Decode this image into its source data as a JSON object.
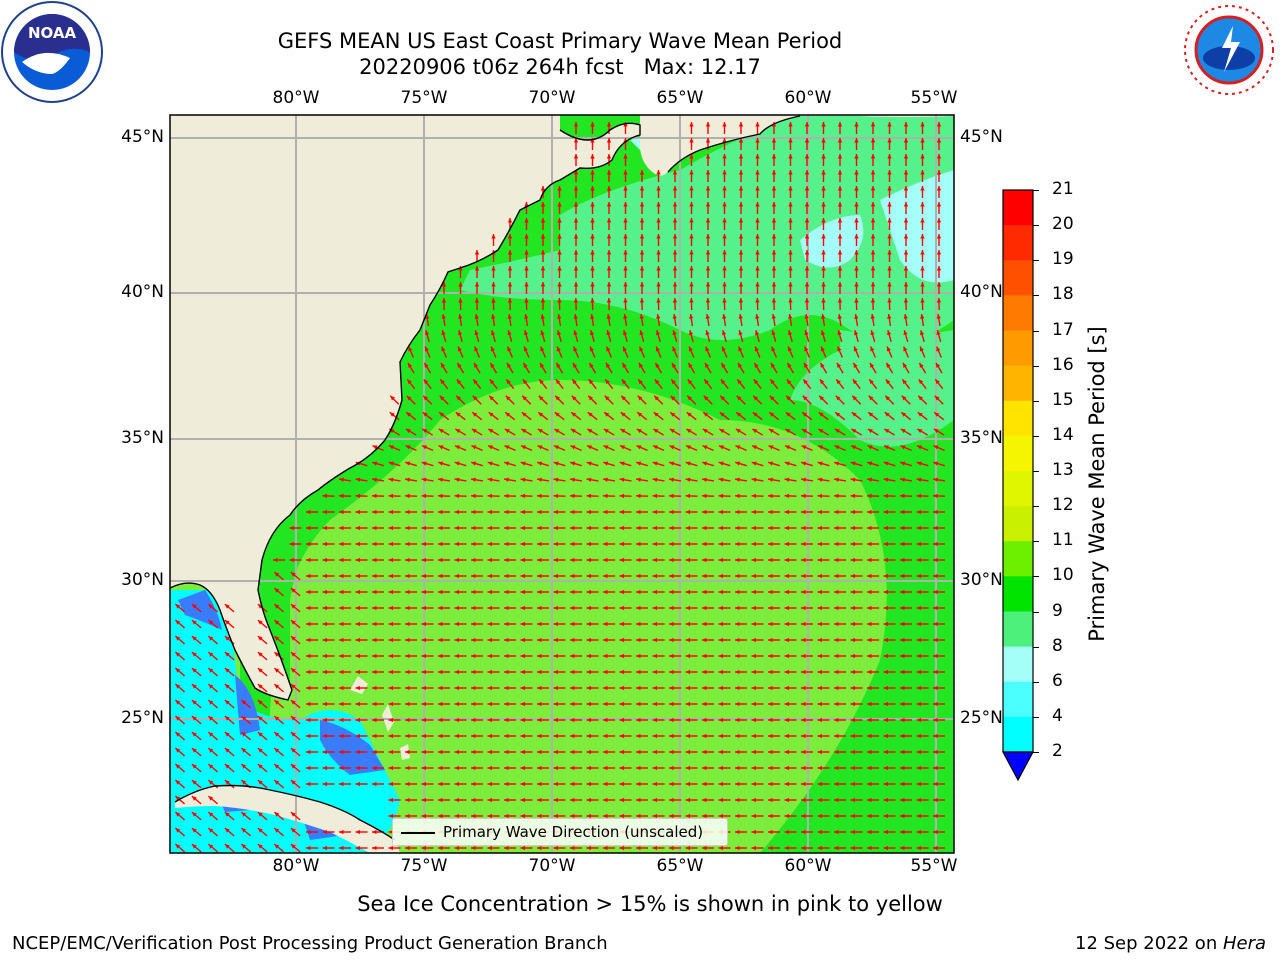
{
  "header": {
    "title_line1": "GEFS MEAN US East Coast Primary Wave Mean Period",
    "title_line2": "20220906 t06z 264h fcst   Max: 12.17"
  },
  "logos": {
    "left": {
      "name": "noaa-logo",
      "text": "NOAA"
    },
    "right": {
      "name": "nws-logo",
      "text": "NATIONAL WEATHER SERVICE"
    }
  },
  "axes": {
    "lon_labels": [
      "80°W",
      "75°W",
      "70°W",
      "65°W",
      "60°W",
      "55°W"
    ],
    "lat_labels_left": [
      "45°N",
      "40°N",
      "35°N",
      "30°N",
      "25°N"
    ],
    "lat_labels_right": [
      "45°N",
      "40°N",
      "35°N",
      "30°N",
      "25°N"
    ]
  },
  "legend": {
    "label": "Primary Wave Direction (unscaled)"
  },
  "colorbar": {
    "label": "Primary Wave Mean Period [s]",
    "ticks": [
      "21",
      "20",
      "19",
      "18",
      "17",
      "16",
      "15",
      "14",
      "13",
      "12",
      "11",
      "10",
      "9",
      "8",
      "6",
      "4",
      "2"
    ],
    "colors": [
      "#ff0000",
      "#ff2a00",
      "#ff5000",
      "#ff7a00",
      "#ff9a00",
      "#ffb400",
      "#ffe400",
      "#f5f500",
      "#e0f500",
      "#c8f000",
      "#6cf000",
      "#00e400",
      "#4cf07a",
      "#a4fff8",
      "#4cffff",
      "#00ffff",
      "#00b4ff",
      "#0064ff"
    ],
    "extend_color": "#0000ff"
  },
  "notes": {
    "sea_ice": "Sea Ice Concentration > 15% is shown in pink to yellow",
    "credit": "NCEP/EMC/Verification Post Processing Product Generation Branch",
    "date_prefix": "12 Sep 2022 on ",
    "machine": "Hera"
  },
  "map_colors": {
    "land": "#efedd9",
    "ocean_main": "#7ced3c",
    "ocean_near": "#22e622",
    "ocean_north": "#55f28c",
    "ocean_cyan": "#a4fff8",
    "ocean_cyan2": "#00ffff",
    "ocean_blue": "#3a7cff",
    "arrow": "#ff0000"
  }
}
